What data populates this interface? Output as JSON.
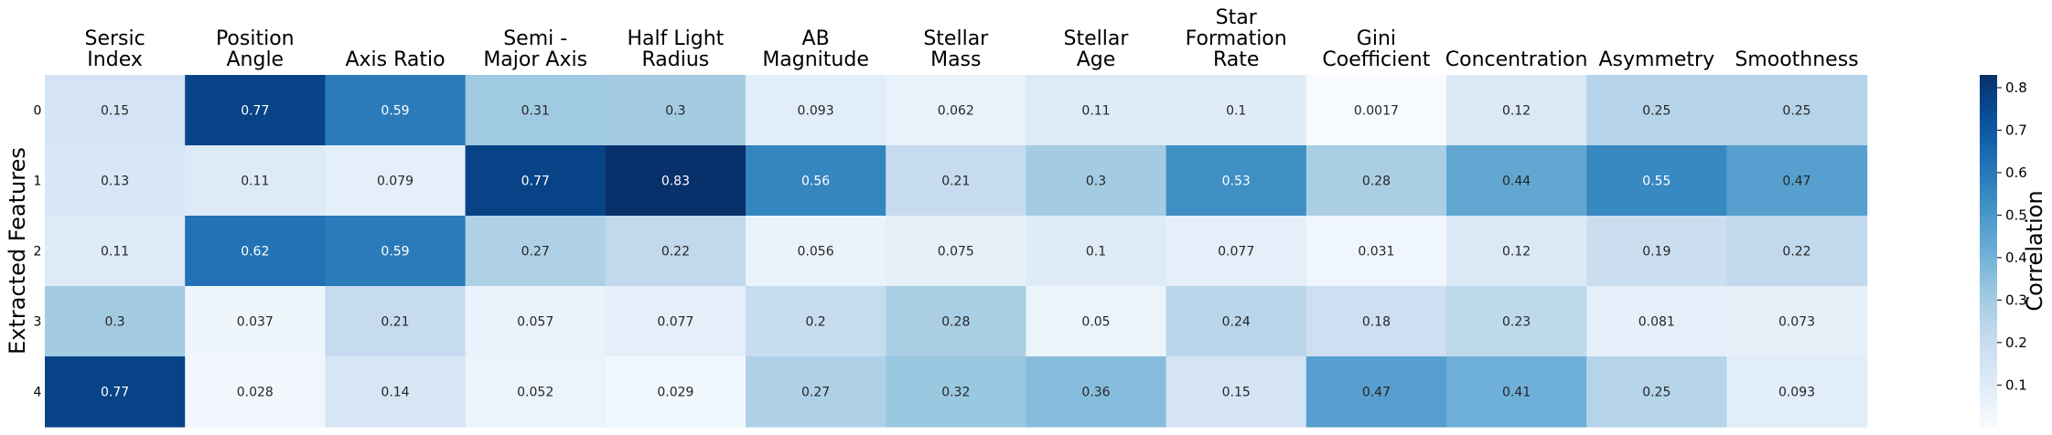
{
  "chart_data": {
    "type": "heatmap",
    "title": "",
    "xlabel": "",
    "ylabel": "Extracted Features",
    "columns": [
      [
        "Sersic",
        "Index"
      ],
      [
        "Position",
        "Angle"
      ],
      [
        "Axis Ratio"
      ],
      [
        "Semi -",
        "Major Axis"
      ],
      [
        "Half Light",
        "Radius"
      ],
      [
        "AB",
        "Magnitude"
      ],
      [
        "Stellar",
        "Mass"
      ],
      [
        "Stellar",
        "Age"
      ],
      [
        "Star",
        "Formation",
        "Rate"
      ],
      [
        "Gini",
        "Coefficient"
      ],
      [
        "Concentration"
      ],
      [
        "Asymmetry"
      ],
      [
        "Smoothness"
      ]
    ],
    "rows": [
      "0",
      "1",
      "2",
      "3",
      "4"
    ],
    "values": [
      [
        0.15,
        0.77,
        0.59,
        0.31,
        0.3,
        0.093,
        0.062,
        0.11,
        0.1,
        0.0017,
        0.12,
        0.25,
        0.25
      ],
      [
        0.13,
        0.11,
        0.079,
        0.77,
        0.83,
        0.56,
        0.21,
        0.3,
        0.53,
        0.28,
        0.44,
        0.55,
        0.47
      ],
      [
        0.11,
        0.62,
        0.59,
        0.27,
        0.22,
        0.056,
        0.075,
        0.1,
        0.077,
        0.031,
        0.12,
        0.19,
        0.22
      ],
      [
        0.3,
        0.037,
        0.21,
        0.057,
        0.077,
        0.2,
        0.28,
        0.05,
        0.24,
        0.18,
        0.23,
        0.081,
        0.073
      ],
      [
        0.77,
        0.028,
        0.14,
        0.052,
        0.029,
        0.27,
        0.32,
        0.36,
        0.15,
        0.47,
        0.41,
        0.25,
        0.093
      ]
    ],
    "colormap": "Blues",
    "colorbar": {
      "label": "Correlation",
      "range": [
        0.0017,
        0.83
      ],
      "ticks": [
        "0.1",
        "0.2",
        "0.3",
        "0.4",
        "0.5",
        "0.6",
        "0.7",
        "0.8"
      ],
      "placement": "right"
    }
  }
}
